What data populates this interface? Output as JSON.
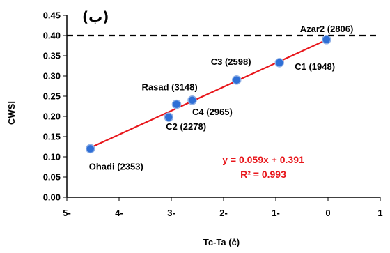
{
  "chart_data": {
    "type": "scatter",
    "panel_label": "(ب)",
    "xlabel": "Tc-Ta (ċ)",
    "ylabel": "CWSI",
    "xlim": [
      -5,
      1
    ],
    "ylim": [
      0,
      0.45
    ],
    "x_ticks": [
      -5,
      -4,
      -3,
      -2,
      -1,
      0,
      1
    ],
    "x_tick_labels": [
      "5-",
      "4-",
      "3-",
      "2-",
      "1-",
      "0",
      "1"
    ],
    "y_ticks": [
      0,
      0.05,
      0.1,
      0.15,
      0.2,
      0.25,
      0.3,
      0.35,
      0.4,
      0.45
    ],
    "y_tick_labels": [
      "0.00",
      "0.05",
      "0.10",
      "0.15",
      "0.20",
      "0.25",
      "0.30",
      "0.35",
      "0.40",
      "0.45"
    ],
    "grid": false,
    "points": [
      {
        "label": "Ohadi (2353)",
        "x": -4.55,
        "y": 0.12
      },
      {
        "label": "C2 (2278)",
        "x": -3.05,
        "y": 0.198
      },
      {
        "label": "Rasad (3148)",
        "x": -2.9,
        "y": 0.23
      },
      {
        "label": "C4 (2965)",
        "x": -2.6,
        "y": 0.24
      },
      {
        "label": "C3 (2598)",
        "x": -1.75,
        "y": 0.29
      },
      {
        "label": "C1 (1948)",
        "x": -0.93,
        "y": 0.333
      },
      {
        "label": "Azar2 (2806)",
        "x": -0.03,
        "y": 0.39
      }
    ],
    "trendline": {
      "slope": 0.059,
      "intercept": 0.391,
      "x_range": [
        -4.55,
        -0.03
      ],
      "color": "#e8161b",
      "equation": "y = 0.059x + 0.391",
      "r_squared": "R² = 0.993"
    },
    "threshold_line": {
      "y": 0.4,
      "style": "dashed",
      "color": "#000000"
    },
    "marker_color": "#2f6fd6"
  }
}
